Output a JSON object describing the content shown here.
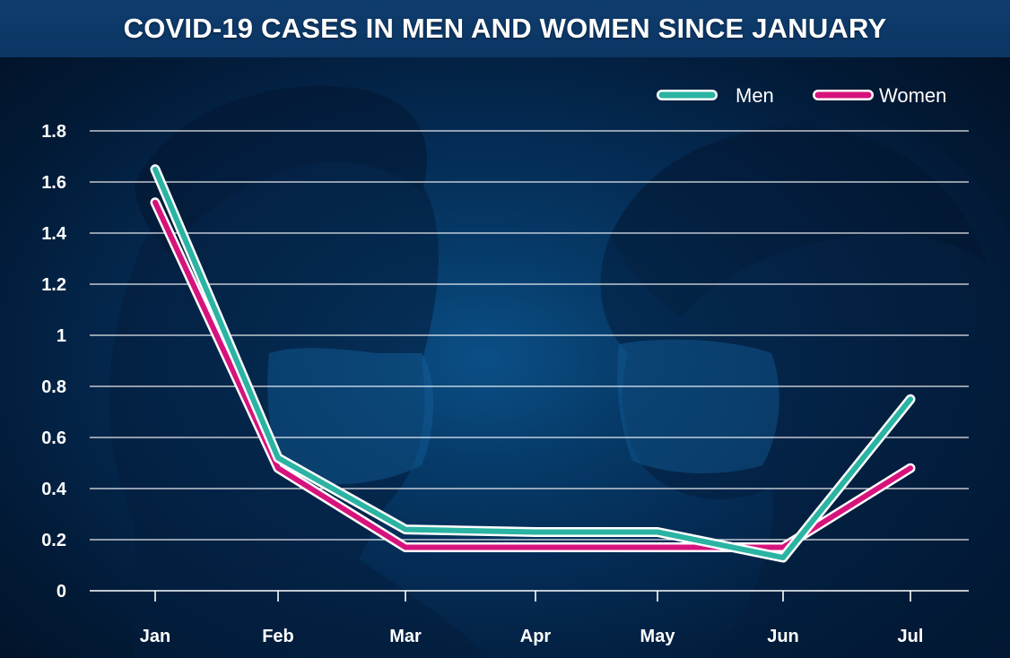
{
  "chart_data": {
    "type": "line",
    "title": "COVID-19 CASES IN MEN AND WOMEN SINCE JANUARY",
    "categories": [
      "Jan",
      "Feb",
      "Mar",
      "Apr",
      "May",
      "Jun",
      "Jul"
    ],
    "series": [
      {
        "name": "Men",
        "color": "#2bb3a3",
        "values": [
          1.65,
          0.52,
          0.24,
          0.23,
          0.23,
          0.13,
          0.75
        ]
      },
      {
        "name": "Women",
        "color": "#d6137c",
        "values": [
          1.52,
          0.48,
          0.17,
          0.17,
          0.17,
          0.17,
          0.48
        ]
      }
    ],
    "yticks": [
      "0",
      "0.2",
      "0.4",
      "0.6",
      "0.8",
      "1",
      "1.2",
      "1.4",
      "1.6",
      "1.8"
    ],
    "ylim": [
      0,
      1.8
    ],
    "grid": true,
    "legend_position": "top-right"
  }
}
